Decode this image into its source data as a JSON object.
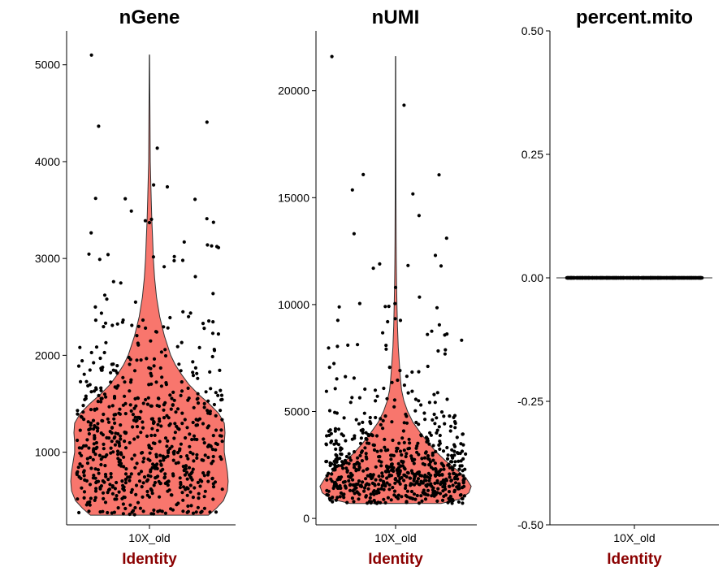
{
  "colors": {
    "violin_fill": "#F8766D",
    "violin_stroke": "#333333",
    "point": "#000000",
    "axis": "#000000",
    "xaxis_title": "#8B0000"
  },
  "chart_data": [
    {
      "type": "violin",
      "title": "nGene",
      "xlabel": "Identity",
      "categories": [
        "10X_old"
      ],
      "ylim": [
        250,
        5350
      ],
      "yticks": [
        1000,
        2000,
        3000,
        4000,
        5000
      ],
      "ytick_labels": [
        "1000",
        "2000",
        "3000",
        "4000",
        "5000"
      ],
      "min": 350,
      "max": 5100,
      "n_points": 700,
      "density": [
        [
          350,
          0.75
        ],
        [
          420,
          0.85
        ],
        [
          500,
          0.94
        ],
        [
          600,
          0.99
        ],
        [
          700,
          1.0
        ],
        [
          800,
          0.99
        ],
        [
          900,
          0.97
        ],
        [
          1000,
          0.95
        ],
        [
          1100,
          0.95
        ],
        [
          1200,
          0.96
        ],
        [
          1300,
          0.95
        ],
        [
          1400,
          0.88
        ],
        [
          1500,
          0.76
        ],
        [
          1600,
          0.62
        ],
        [
          1700,
          0.5
        ],
        [
          1800,
          0.41
        ],
        [
          1900,
          0.33
        ],
        [
          2000,
          0.27
        ],
        [
          2200,
          0.19
        ],
        [
          2400,
          0.13
        ],
        [
          2600,
          0.09
        ],
        [
          2800,
          0.065
        ],
        [
          3000,
          0.05
        ],
        [
          3200,
          0.04
        ],
        [
          3400,
          0.03
        ],
        [
          3600,
          0.023
        ],
        [
          3800,
          0.016
        ],
        [
          4000,
          0.01
        ],
        [
          4400,
          0.007
        ],
        [
          4800,
          0.004
        ],
        [
          5100,
          0.002
        ]
      ],
      "outliers": [
        [
          -0.7,
          5100
        ],
        [
          -0.65,
          3620
        ],
        [
          0.05,
          3760
        ],
        [
          0.55,
          3610
        ],
        [
          -0.05,
          3390
        ],
        [
          0.0,
          3370
        ],
        [
          0.42,
          3170
        ],
        [
          0.7,
          3140
        ],
        [
          0.75,
          3130
        ],
        [
          -0.5,
          3040
        ],
        [
          0.3,
          3020
        ],
        [
          -0.6,
          2990
        ]
      ]
    },
    {
      "type": "violin",
      "title": "nUMI",
      "xlabel": "Identity",
      "categories": [
        "10X_old"
      ],
      "ylim": [
        -300,
        22800
      ],
      "yticks": [
        0,
        5000,
        10000,
        15000,
        20000
      ],
      "ytick_labels": [
        "0",
        "5000",
        "10000",
        "15000",
        "20000"
      ],
      "min": 700,
      "max": 21600,
      "n_points": 700,
      "density": [
        [
          700,
          0.6
        ],
        [
          900,
          0.85
        ],
        [
          1200,
          0.97
        ],
        [
          1500,
          1.0
        ],
        [
          1900,
          0.93
        ],
        [
          2300,
          0.8
        ],
        [
          2700,
          0.66
        ],
        [
          3100,
          0.54
        ],
        [
          3500,
          0.44
        ],
        [
          4000,
          0.33
        ],
        [
          4500,
          0.23
        ],
        [
          5000,
          0.16
        ],
        [
          5500,
          0.11
        ],
        [
          6000,
          0.08
        ],
        [
          6500,
          0.065
        ],
        [
          7000,
          0.055
        ],
        [
          7500,
          0.045
        ],
        [
          8000,
          0.035
        ],
        [
          9000,
          0.025
        ],
        [
          10000,
          0.018
        ],
        [
          11000,
          0.013
        ],
        [
          12000,
          0.01
        ],
        [
          13000,
          0.007
        ],
        [
          15000,
          0.005
        ],
        [
          17000,
          0.004
        ],
        [
          19000,
          0.003
        ],
        [
          21600,
          0.002
        ]
      ],
      "outliers": [
        [
          -0.8,
          21600
        ],
        [
          0.5,
          12300
        ],
        [
          -0.2,
          11900
        ],
        [
          -0.28,
          11700
        ],
        [
          0.0,
          10800
        ],
        [
          0.3,
          10350
        ],
        [
          0.52,
          9850
        ],
        [
          -0.45,
          10050
        ],
        [
          0.55,
          9050
        ],
        [
          0.4,
          8600
        ],
        [
          -0.1,
          9200
        ],
        [
          -0.6,
          8100
        ]
      ]
    },
    {
      "type": "violin",
      "title": "percent.mito",
      "xlabel": "Identity",
      "categories": [
        "10X_old"
      ],
      "ylim": [
        -0.5,
        0.5
      ],
      "yticks": [
        -0.5,
        -0.25,
        0.0,
        0.25,
        0.5
      ],
      "ytick_labels": [
        "-0.50",
        "-0.25",
        "0.00",
        "0.25",
        "0.50"
      ],
      "all_values": 0.0,
      "n_points": 700
    }
  ]
}
